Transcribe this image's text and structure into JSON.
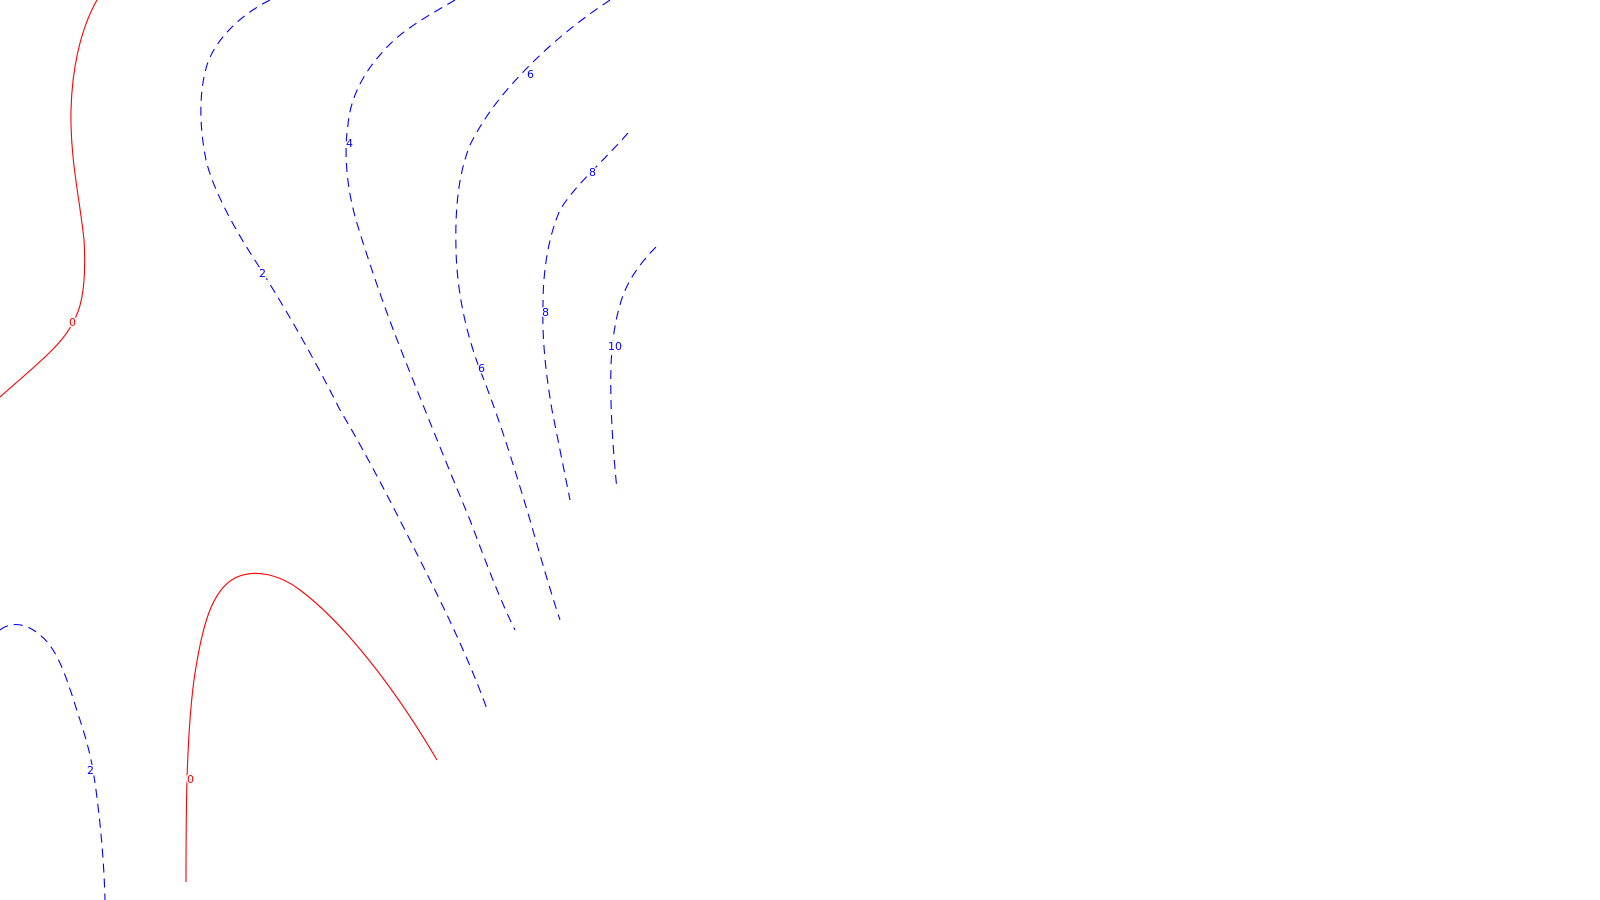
{
  "chart_data": {
    "type": "contour",
    "title": "",
    "xlabel": "",
    "ylabel": "",
    "colors": {
      "zero": "#ff0000",
      "positive": "#0000ff",
      "background": "#ffffff"
    },
    "contours": [
      {
        "level": 0,
        "label": "0",
        "style": "solid"
      },
      {
        "level": 0,
        "label": "0",
        "style": "solid"
      },
      {
        "level": 2,
        "label": "2",
        "style": "dashed"
      },
      {
        "level": 2,
        "label": "2",
        "style": "dashed"
      },
      {
        "level": 4,
        "label": "4",
        "style": "dashed"
      },
      {
        "level": 6,
        "label": "6",
        "style": "dashed"
      },
      {
        "level": 6,
        "label": "6",
        "style": "dashed"
      },
      {
        "level": 8,
        "label": "8",
        "style": "dashed"
      },
      {
        "level": 8,
        "label": "8",
        "style": "dashed"
      },
      {
        "level": 10,
        "label": "10",
        "style": "dashed"
      }
    ]
  }
}
